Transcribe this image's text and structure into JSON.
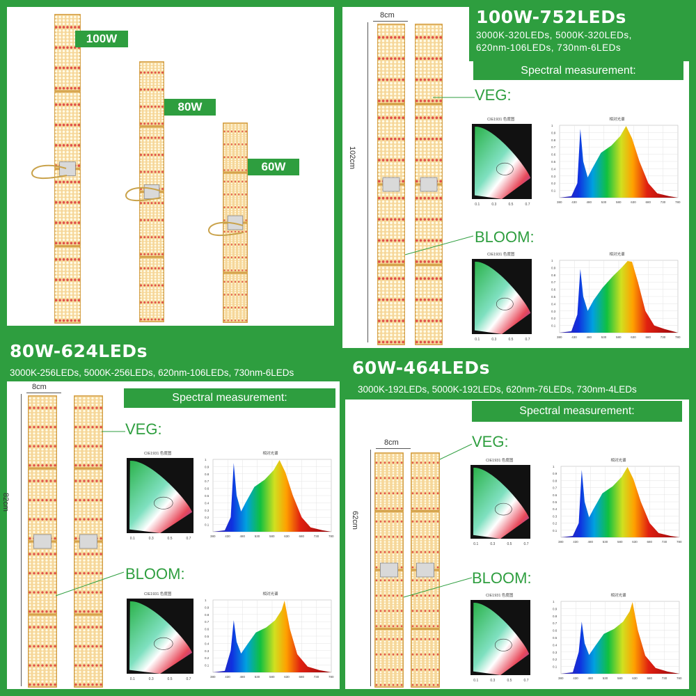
{
  "top_left": {
    "labels": [
      "100W",
      "80W",
      "60W"
    ]
  },
  "top_right": {
    "dim_width": "8cm",
    "dim_height": "102cm",
    "title": "100W-752LEDs",
    "subtitle_line1": "3000K-320LEDs, 5000K-320LEDs,",
    "subtitle_line2": "620nm-106LEDs, 730nm-6LEDs",
    "spectral": "Spectral measurement:",
    "veg": "VEG:",
    "bloom": "BLOOM:"
  },
  "bottom_left": {
    "title": "80W-624LEDs",
    "subtitle": "3000K-256LEDs, 5000K-256LEDs, 620nm-106LEDs, 730nm-6LEDs",
    "dim_width": "8cm",
    "dim_height": "82cm",
    "spectral": "Spectral measurement:",
    "veg": "VEG:",
    "bloom": "BLOOM:"
  },
  "bottom_right": {
    "title": "60W-464LEDs",
    "subtitle": "3000K-192LEDs, 5000K-192LEDs, 620nm-76LEDs, 730nm-4LEDs",
    "dim_width": "8cm",
    "dim_height": "62cm",
    "spectral": "Spectral measurement:",
    "veg": "VEG:",
    "bloom": "BLOOM:"
  },
  "charts": {
    "cie_title": "CIE1931 色度图",
    "spectrum_title": "相对光谱",
    "cie_x_ticks": [
      "0.1",
      "0.3",
      "0.5",
      "0.7"
    ],
    "spectrum_x_ticks": [
      "380",
      "430",
      "480",
      "530",
      "580",
      "630",
      "680",
      "730",
      "780"
    ],
    "spectrum_y_ticks": [
      "1",
      "0.9",
      "0.8",
      "0.7",
      "0.6",
      "0.5",
      "0.4",
      "0.3",
      "0.2",
      "0.1"
    ]
  },
  "colors": {
    "brand_green": "#2e9e3f",
    "panel_gold": "#d9a64a",
    "led_warm": "#fff3c8"
  }
}
